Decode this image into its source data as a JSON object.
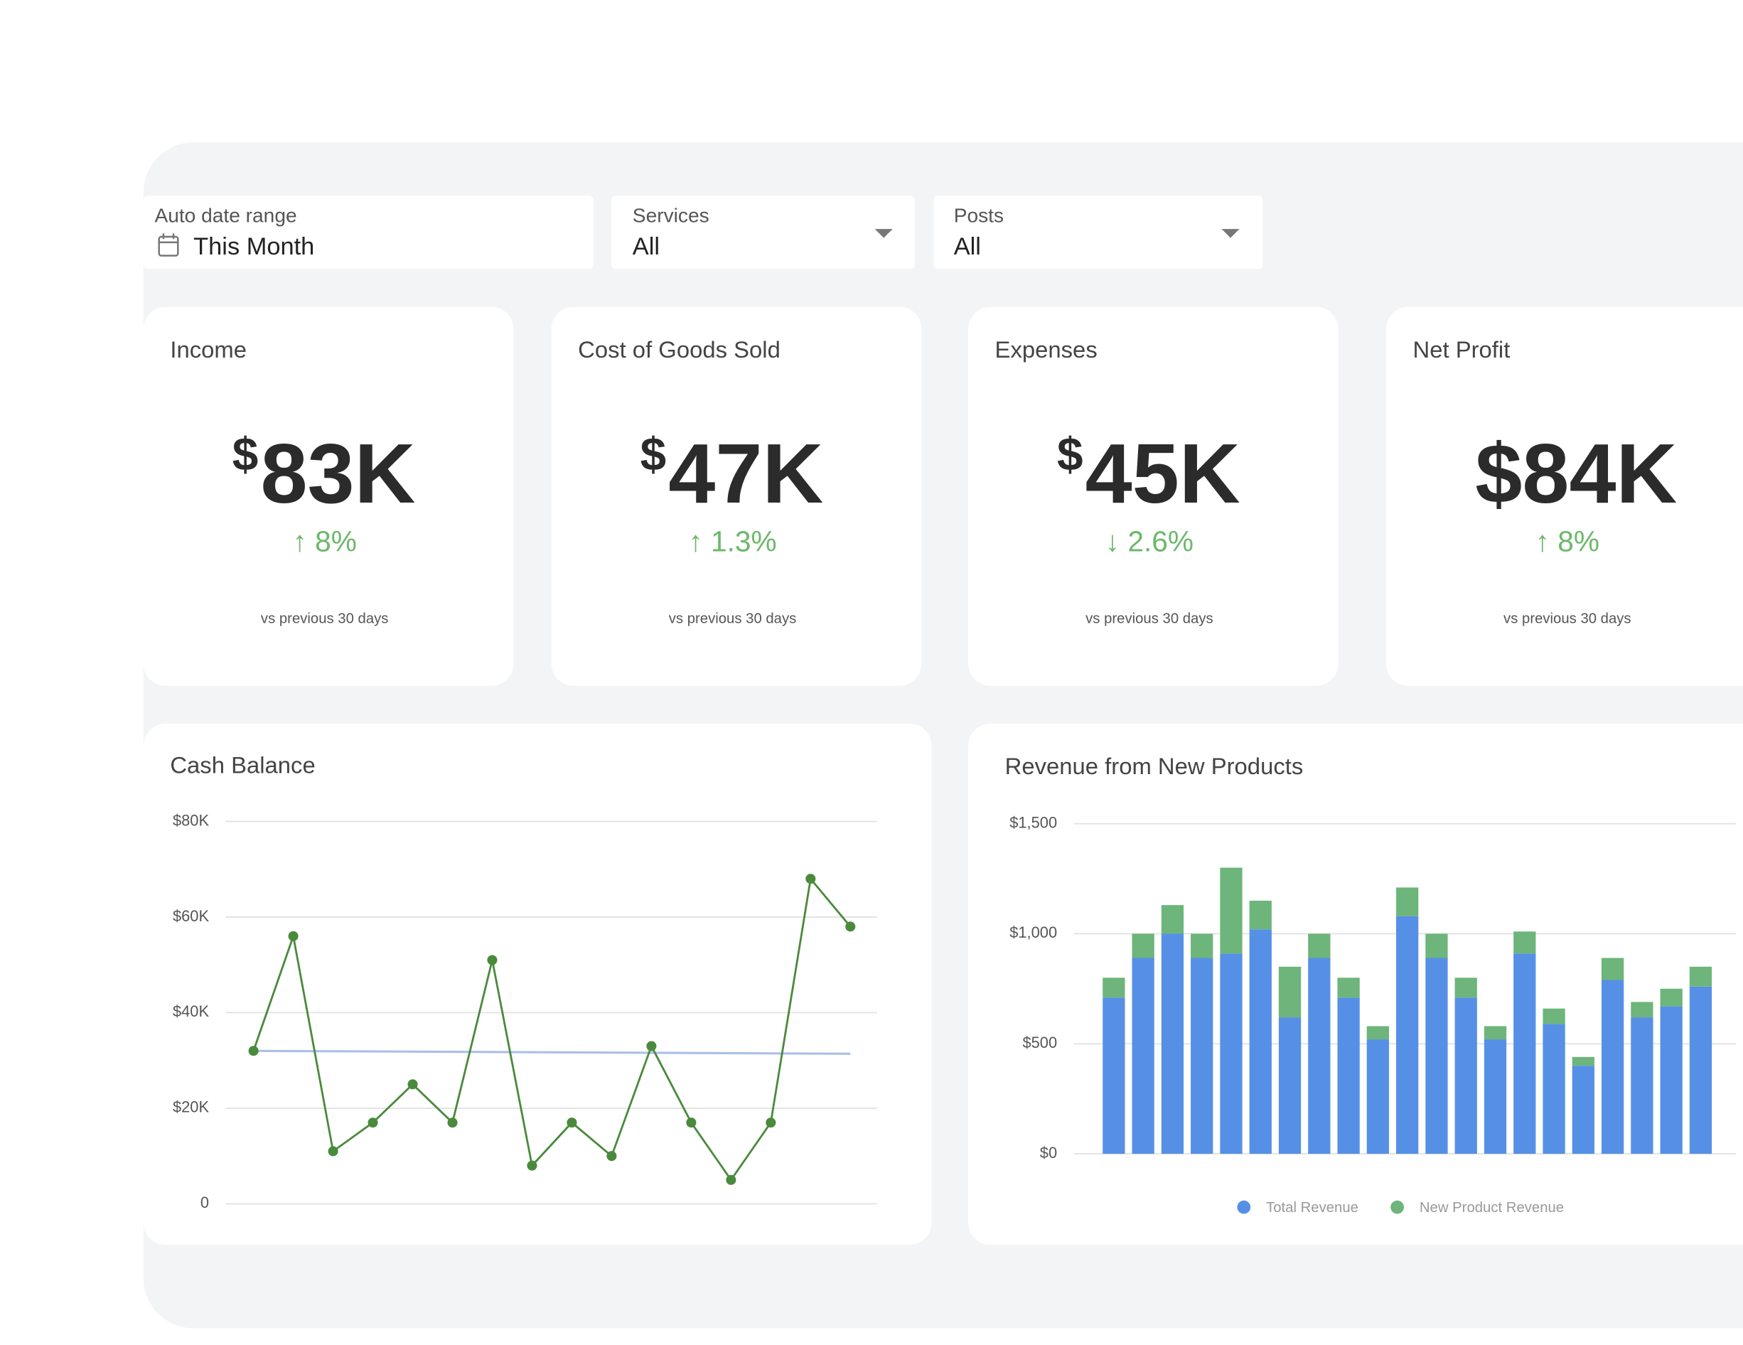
{
  "filters": [
    {
      "label": "Auto date range",
      "value": "This Month"
    },
    {
      "label": "Services",
      "value": "All"
    },
    {
      "label": "Posts",
      "value": "All"
    }
  ],
  "kpis": [
    {
      "title": "Income",
      "prefix": "$",
      "value": "83K",
      "change": "↑ 8%",
      "note": "vs previous 30 days"
    },
    {
      "title": "Cost of Goods Sold",
      "prefix": "$",
      "value": "47K",
      "change": "↑ 1.3%",
      "note": "vs previous 30 days"
    },
    {
      "title": "Expenses",
      "prefix": "$",
      "value": "45K",
      "change": "↓ 2.6%",
      "note": "vs previous 30 days"
    },
    {
      "title": "Net Profit",
      "value": "$84K",
      "change": "↑ 8%",
      "note": "vs previous 30 days"
    }
  ],
  "chart_data": [
    {
      "type": "line",
      "title": "Cash Balance",
      "categories": [
        null,
        null,
        null,
        null,
        null,
        null,
        null,
        null,
        null,
        null,
        null,
        null,
        null,
        null,
        null,
        null
      ],
      "series": [
        {
          "color": "#4a8a3c",
          "values": [
            32000,
            56000,
            11000,
            17000,
            25000,
            17000,
            51000,
            8000,
            17000,
            10000,
            33000,
            17000,
            5000,
            17000,
            68000,
            58000
          ]
        }
      ],
      "trend": [
        32000,
        31400
      ],
      "trend_color": "#a9c0e6",
      "ylim": [
        0,
        80000
      ],
      "yticks": [
        0,
        {
          "value": 20000,
          "label": "$20K"
        },
        {
          "value": 40000,
          "label": "$40K"
        },
        {
          "value": 60000,
          "label": "$60K"
        },
        {
          "value": 80000,
          "label": "$80K"
        }
      ],
      "grid": true
    },
    {
      "type": "stacked-bar",
      "title": "Revenue from New Products",
      "categories": [
        null,
        null,
        null,
        null,
        null,
        null,
        null,
        null,
        null,
        null,
        null,
        null,
        null,
        null,
        null,
        null,
        null,
        null,
        null,
        null,
        null
      ],
      "series": [
        {
          "name": "Total Revenue",
          "color": "#5690e6",
          "values": [
            710,
            890,
            1000,
            890,
            910,
            1020,
            620,
            890,
            710,
            520,
            1080,
            890,
            710,
            520,
            910,
            590,
            400,
            790,
            620,
            670,
            760
          ]
        },
        {
          "name": "New Product Revenue",
          "color": "#6db57b",
          "values": [
            90,
            110,
            130,
            110,
            390,
            130,
            230,
            110,
            90,
            60,
            130,
            110,
            90,
            60,
            100,
            70,
            40,
            100,
            70,
            80,
            90
          ]
        }
      ],
      "ylim": [
        0,
        1500
      ],
      "yticks": [
        {
          "value": 0,
          "label": "$0"
        },
        {
          "value": 500,
          "label": "$500"
        },
        {
          "value": 1000,
          "label": "$1,000"
        },
        {
          "value": 1500,
          "label": "$1,500"
        }
      ],
      "grid": true,
      "legend": "bottom"
    }
  ]
}
